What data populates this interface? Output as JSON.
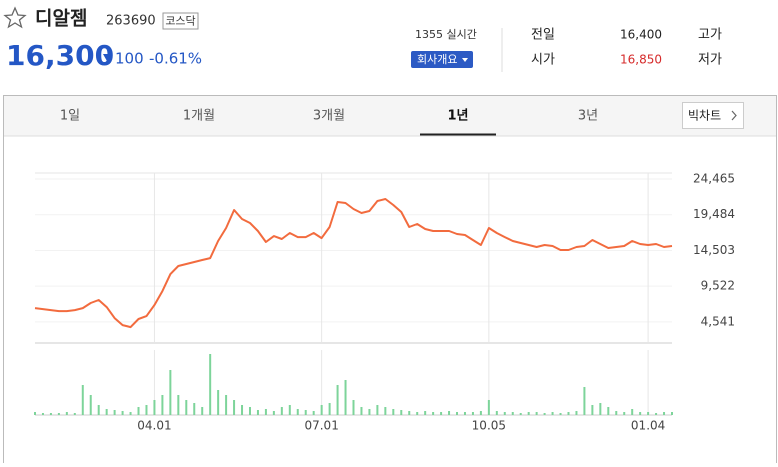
{
  "header": {
    "title": "디알젬",
    "code": "263690",
    "market": "코스닥",
    "price": "16,300",
    "change": "100",
    "change_rate": "-0.61%",
    "realtime": "1355 실시간",
    "company_button": "회사개요"
  },
  "summary": [
    {
      "label": "전일",
      "value": "16,400"
    },
    {
      "label": "고가"
    },
    {
      "label": "시가",
      "value": "16,850"
    },
    {
      "label": "저가"
    }
  ],
  "tabs": [
    "1일",
    "1개월",
    "3개월",
    "1년",
    "3년"
  ],
  "active_tab": 3,
  "big_chart": "빅차트",
  "chart_data": {
    "type": "line",
    "categories": [
      null,
      null,
      null,
      null,
      null,
      null,
      null,
      null,
      null,
      null,
      null,
      null,
      null,
      null,
      null,
      "04.01",
      null,
      null,
      null,
      null,
      null,
      null,
      null,
      null,
      null,
      null,
      null,
      null,
      null,
      null,
      null,
      null,
      null,
      null,
      null,
      null,
      "07.01",
      null,
      null,
      null,
      null,
      null,
      null,
      null,
      null,
      null,
      null,
      null,
      null,
      null,
      null,
      null,
      null,
      null,
      null,
      null,
      null,
      "10.05",
      null,
      null,
      null,
      null,
      null,
      null,
      null,
      null,
      null,
      null,
      null,
      null,
      null,
      null,
      null,
      null,
      null,
      null,
      null,
      "01.04",
      null,
      null,
      null
    ],
    "series": [
      {
        "color": "#f26b3e",
        "values": [
          6470,
          6330,
          6190,
          6050,
          6050,
          6190,
          6470,
          7170,
          7590,
          6610,
          5070,
          4100,
          3820,
          4940,
          5350,
          6890,
          8840,
          11210,
          12330,
          12610,
          12890,
          13170,
          13440,
          15820,
          17630,
          20140,
          18890,
          18330,
          17210,
          15680,
          16510,
          16100,
          16930,
          16370,
          16370,
          16930,
          16230,
          17770,
          21260,
          21120,
          20280,
          19720,
          20000,
          21400,
          21680,
          20840,
          19860,
          17770,
          18190,
          17490,
          17210,
          17210,
          17210,
          16790,
          16650,
          15960,
          15260,
          17630,
          16930,
          16370,
          15820,
          15540,
          15260,
          14980,
          15260,
          15120,
          14560,
          14560,
          14980,
          15120,
          15960,
          15400,
          14840,
          14980,
          15120,
          15820,
          15400,
          15260,
          15400,
          14980,
          15120
        ]
      }
    ],
    "ylim": [
      1600,
      25300
    ],
    "yticks": [
      {
        "value": 24465,
        "label": "24,465"
      },
      {
        "value": 19484,
        "label": "19,484"
      },
      {
        "value": 14503,
        "label": "14,503"
      },
      {
        "value": 9522,
        "label": "9,522"
      },
      {
        "value": 4541,
        "label": "4,541"
      }
    ],
    "grid": true,
    "volume": {
      "type": "bar",
      "color": "#7dd49a",
      "ylim": [
        0,
        65
      ],
      "values": [
        3,
        2,
        2,
        2,
        3,
        2,
        30,
        20,
        10,
        6,
        5,
        4,
        3,
        8,
        10,
        15,
        20,
        45,
        20,
        15,
        12,
        8,
        61,
        25,
        20,
        15,
        10,
        8,
        5,
        6,
        4,
        8,
        10,
        6,
        5,
        4,
        10,
        12,
        30,
        35,
        15,
        8,
        6,
        10,
        8,
        6,
        5,
        4,
        3,
        4,
        3,
        3,
        4,
        3,
        3,
        3,
        4,
        15,
        4,
        3,
        3,
        2,
        3,
        3,
        2,
        3,
        2,
        3,
        4,
        28,
        10,
        12,
        8,
        4,
        3,
        6,
        3,
        3,
        2,
        3,
        3
      ]
    }
  }
}
